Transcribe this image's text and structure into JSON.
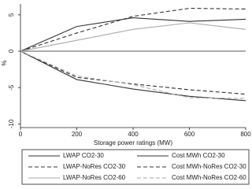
{
  "chart_data": {
    "type": "line",
    "xlabel": "Storage power ratings (MW)",
    "ylabel": "%",
    "x": [
      0,
      200,
      400,
      600,
      800
    ],
    "xlim": [
      0,
      800
    ],
    "xticks": [
      0,
      200,
      400,
      600,
      800
    ],
    "ylim": [
      -10.5,
      6.5
    ],
    "yticks": [
      5,
      0,
      -5,
      -10
    ],
    "series": [
      {
        "name": "LWAP CO2-30",
        "color": "#333333",
        "dash": "none",
        "values": [
          0,
          3.4,
          4.6,
          4.1,
          4.4
        ]
      },
      {
        "name": "LWAP-NoRes CO2-30",
        "color": "#333333",
        "dash": "5,3",
        "values": [
          0,
          2.5,
          4.8,
          5.9,
          5.8
        ]
      },
      {
        "name": "LWAP-NoRes CO2-60",
        "color": "#aaaaaa",
        "dash": "none",
        "values": [
          0,
          1.5,
          3.0,
          3.9,
          3.0
        ]
      },
      {
        "name": "Cost MWh CO2-30",
        "color": "#333333",
        "dash": "none",
        "values": [
          0,
          -3.9,
          -5.2,
          -6.2,
          -6.8
        ]
      },
      {
        "name": "Cost MWh-NoRes CO2-30",
        "color": "#333333",
        "dash": "5,3",
        "values": [
          0,
          -3.6,
          -4.5,
          -5.3,
          -5.9
        ]
      },
      {
        "name": "Cost MWh-NoRes CO2-60",
        "color": "#aaaaaa",
        "dash": "5,3",
        "values": [
          0,
          -3.4,
          -4.6,
          -6.4,
          -6.5
        ]
      }
    ]
  }
}
